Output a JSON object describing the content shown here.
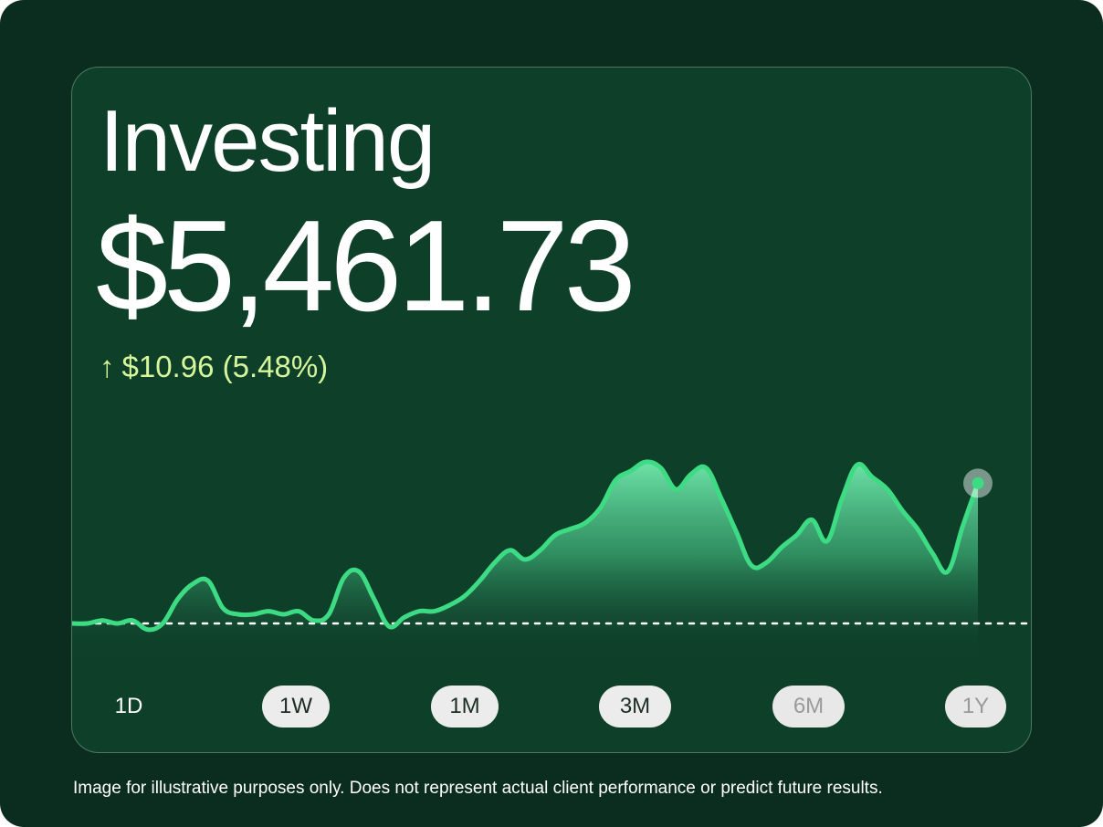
{
  "card": {
    "title": "Investing",
    "balance": "$5,461.73",
    "change": {
      "arrow": "↑",
      "text": "$10.96 (5.48%)",
      "color": "#d7f59b"
    }
  },
  "chart_data": {
    "type": "area",
    "title": "",
    "xlabel": "",
    "ylabel": "",
    "baseline_value": 100,
    "line_color": "#3ddc84",
    "x": [
      0,
      1,
      2,
      3,
      4,
      5,
      6,
      7,
      8,
      9,
      10,
      11,
      12,
      13,
      14,
      15,
      16,
      17,
      18,
      19,
      20,
      21,
      22,
      23,
      24,
      25,
      26,
      27,
      28,
      29,
      30,
      31,
      32,
      33,
      34,
      35,
      36,
      37,
      38,
      39,
      40,
      41,
      42,
      43,
      44,
      45,
      46,
      47,
      48,
      49,
      50,
      51,
      52,
      53,
      54,
      55,
      56,
      57,
      58,
      59,
      60
    ],
    "values": [
      100,
      100,
      101,
      100,
      101,
      98,
      100,
      108,
      113,
      114,
      105,
      103,
      103,
      104,
      103,
      104,
      101,
      103,
      115,
      117,
      108,
      99,
      102,
      104,
      104,
      106,
      109,
      114,
      120,
      124,
      121,
      124,
      129,
      131,
      133,
      138,
      147,
      150,
      153,
      151,
      144,
      149,
      151,
      141,
      130,
      119,
      120,
      125,
      129,
      134,
      127,
      141,
      152,
      148,
      144,
      137,
      131,
      123,
      117,
      132,
      146
    ]
  },
  "ranges": {
    "items": [
      {
        "label": "1D",
        "style": "plain"
      },
      {
        "label": "1W",
        "style": "pill"
      },
      {
        "label": "1M",
        "style": "pill"
      },
      {
        "label": "3M",
        "style": "pill"
      },
      {
        "label": "6M",
        "style": "pill-dim"
      },
      {
        "label": "1Y",
        "style": "pill-dim"
      }
    ]
  },
  "footer": {
    "disclaimer": "Image for illustrative purposes only. Does not represent actual client performance or predict future results."
  }
}
